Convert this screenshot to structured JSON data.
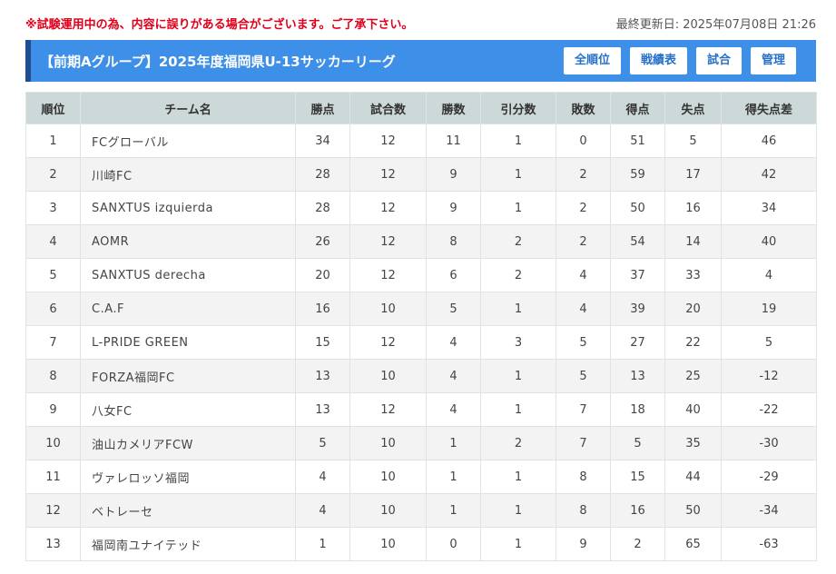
{
  "notice": "※試験運用中の為、内容に誤りがある場合がございます。ご了承下さい。",
  "last_updated": "最終更新日: 2025年07月08日 21:26",
  "header": {
    "title": "【前期Aグループ】2025年度福岡県U-13サッカーリーグ",
    "buttons": [
      "全順位",
      "戦績表",
      "試合",
      "管理"
    ],
    "active_button": "全順位"
  },
  "table": {
    "columns": [
      "順位",
      "チーム名",
      "勝点",
      "試合数",
      "勝数",
      "引分数",
      "敗数",
      "得点",
      "失点",
      "得失点差"
    ],
    "rows": [
      [
        "1",
        "FCグローバル",
        "34",
        "12",
        "11",
        "1",
        "0",
        "51",
        "5",
        "46"
      ],
      [
        "2",
        "川崎FC",
        "28",
        "12",
        "9",
        "1",
        "2",
        "59",
        "17",
        "42"
      ],
      [
        "3",
        "SANXTUS izquierda",
        "28",
        "12",
        "9",
        "1",
        "2",
        "50",
        "16",
        "34"
      ],
      [
        "4",
        "AOMR",
        "26",
        "12",
        "8",
        "2",
        "2",
        "54",
        "14",
        "40"
      ],
      [
        "5",
        "SANXTUS derecha",
        "20",
        "12",
        "6",
        "2",
        "4",
        "37",
        "33",
        "4"
      ],
      [
        "6",
        "C.A.F",
        "16",
        "10",
        "5",
        "1",
        "4",
        "39",
        "20",
        "19"
      ],
      [
        "7",
        "L-PRIDE GREEN",
        "15",
        "12",
        "4",
        "3",
        "5",
        "27",
        "22",
        "5"
      ],
      [
        "8",
        "FORZA福岡FC",
        "13",
        "10",
        "4",
        "1",
        "5",
        "13",
        "25",
        "-12"
      ],
      [
        "9",
        "八女FC",
        "13",
        "12",
        "4",
        "1",
        "7",
        "18",
        "40",
        "-22"
      ],
      [
        "10",
        "油山カメリアFCW",
        "5",
        "10",
        "1",
        "2",
        "7",
        "5",
        "35",
        "-30"
      ],
      [
        "11",
        "ヴァレロッソ福岡",
        "4",
        "10",
        "1",
        "1",
        "8",
        "15",
        "44",
        "-29"
      ],
      [
        "12",
        "ベトレーセ",
        "4",
        "10",
        "1",
        "1",
        "8",
        "16",
        "50",
        "-34"
      ],
      [
        "13",
        "福岡南ユナイテッド",
        "1",
        "10",
        "0",
        "1",
        "9",
        "2",
        "65",
        "-63"
      ]
    ]
  },
  "colors": {
    "notice": "#e0001b",
    "title_bar": "#3d8fe8",
    "title_bar_edge": "#1f4d8f",
    "header_row": "#ccd9d8"
  }
}
